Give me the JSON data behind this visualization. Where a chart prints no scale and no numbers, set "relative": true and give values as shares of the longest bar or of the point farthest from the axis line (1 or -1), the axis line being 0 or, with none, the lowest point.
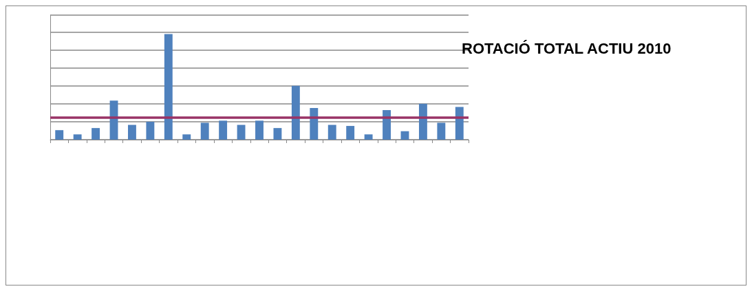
{
  "chart_data": {
    "type": "bar",
    "title": "ROTACIÓ TOTAL ACTIU 2010",
    "relative": true,
    "grid": "y",
    "color": "#4f81bd",
    "categories": [
      null,
      null,
      null,
      null,
      null,
      null,
      null,
      null,
      null,
      null,
      null,
      null,
      null,
      null,
      null,
      null,
      null,
      null,
      null,
      null,
      null,
      null,
      null
    ],
    "values": [
      0.09,
      0.05,
      0.11,
      0.37,
      0.14,
      0.17,
      1,
      0.05,
      0.16,
      0.18,
      0.14,
      0.18,
      0.11,
      0.51,
      0.3,
      0.14,
      0.13,
      0.05,
      0.28,
      0.08,
      0.34,
      0.16,
      0.31
    ],
    "ref_lines": [
      {
        "axis": "y",
        "value": 0.21,
        "color": "#993366"
      }
    ]
  }
}
